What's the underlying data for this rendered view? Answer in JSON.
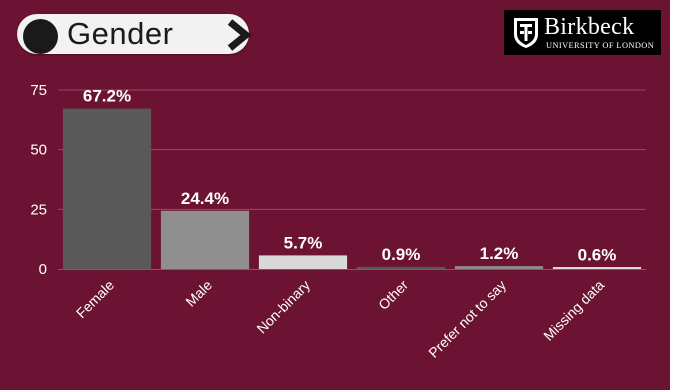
{
  "header": {
    "title": "Gender",
    "logo_name": "Birkbeck",
    "logo_subtitle": "UNIVERSITY OF LONDON"
  },
  "colors": {
    "background": "#6c1232",
    "gridline": "#9b4a68",
    "axis_text": "#ffffff"
  },
  "chart_data": {
    "type": "bar",
    "title": "Gender",
    "categories": [
      "Female",
      "Male",
      "Non-binary",
      "Other",
      "Prefer not to say",
      "Missing data"
    ],
    "values": [
      67.2,
      24.4,
      5.7,
      0.9,
      1.2,
      0.6
    ],
    "data_labels": [
      "67.2%",
      "24.4%",
      "5.7%",
      "0.9%",
      "1.2%",
      "0.6%"
    ],
    "bar_colors": [
      "#595959",
      "#8f8f8f",
      "#d9d9d9",
      "#595959",
      "#8f8f8f",
      "#d9d9d9"
    ],
    "yticks": [
      0,
      25,
      50,
      75
    ],
    "ylim": [
      0,
      75
    ],
    "grid": true,
    "xlabel": "",
    "ylabel": ""
  }
}
